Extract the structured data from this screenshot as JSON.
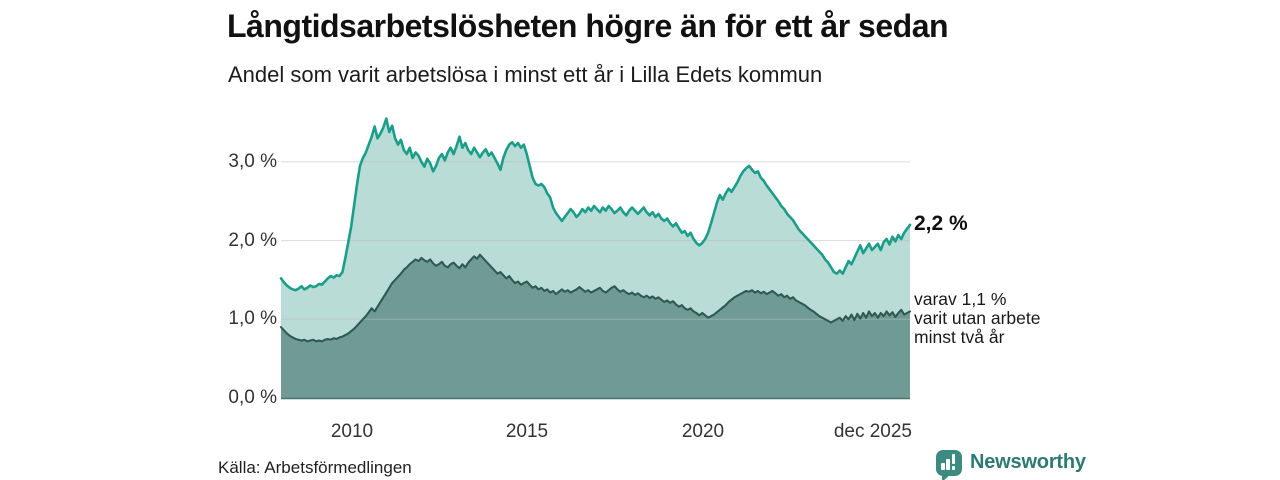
{
  "header": {
    "title": "Långtidsarbetslösheten högre än för ett år sedan",
    "subtitle": "Andel som varit arbetslösa i minst ett år i Lilla Edets kommun"
  },
  "chart": {
    "y_axis": {
      "labels": [
        "3,0 %",
        "2,0 %",
        "1,0 %",
        "0,0 %"
      ]
    },
    "x_axis": {
      "labels": [
        "2010",
        "2015",
        "2020",
        "dec 2025"
      ]
    }
  },
  "annotations": {
    "total_label": "2,2 %",
    "inner_lines": [
      "varav 1,1 %",
      "varit utan arbete",
      "minst två år"
    ]
  },
  "footer": {
    "source": "Källa: Arbetsförmedlingen",
    "brand": "Newsworthy"
  },
  "colors": {
    "total_line": "#1a9e8a",
    "total_fill": "#b9dcd6",
    "inner_line": "#2d5a52",
    "inner_fill": "#6f9b94",
    "grid": "#bdbdbd",
    "baseline": "#48756d",
    "brand_teal": "#2d7a72",
    "logo_bg": "#3b8b80"
  },
  "chart_data": {
    "type": "area",
    "title": "Långtidsarbetslösheten högre än för ett år sedan",
    "subtitle": "Andel som varit arbetslösa i minst ett år i Lilla Edets kommun",
    "unit": "percent",
    "frequency": "monthly",
    "start": "2008-01",
    "end": "2025-12",
    "ylim": [
      0,
      3.7
    ],
    "grid": "horizontal",
    "y_tick_values": [
      3,
      2,
      1,
      0
    ],
    "y_tick_labels": [
      "3,0 %",
      "2,0 %",
      "1,0 %",
      "0,0 %"
    ],
    "x_tick_labels": [
      "2010",
      "2015",
      "2020",
      "dec 2025"
    ],
    "legend_position": "right-annotations",
    "source": "Källa: Arbetsförmedlingen",
    "series": [
      {
        "name": "Andel arbetslösa minst ett år",
        "latest_value": 2.2,
        "latest_label": "2,2 %",
        "color": "#1a9e8a",
        "fill": "#b9dcd6",
        "values": [
          1.52,
          1.47,
          1.43,
          1.4,
          1.38,
          1.37,
          1.39,
          1.42,
          1.38,
          1.4,
          1.43,
          1.41,
          1.42,
          1.45,
          1.44,
          1.48,
          1.52,
          1.55,
          1.53,
          1.56,
          1.55,
          1.6,
          1.78,
          1.98,
          2.18,
          2.45,
          2.72,
          2.95,
          3.05,
          3.12,
          3.22,
          3.32,
          3.45,
          3.3,
          3.36,
          3.44,
          3.55,
          3.38,
          3.46,
          3.3,
          3.22,
          3.28,
          3.15,
          3.1,
          3.18,
          3.05,
          3.12,
          3.08,
          3.0,
          2.94,
          3.04,
          2.98,
          2.88,
          2.95,
          3.05,
          3.1,
          3.02,
          3.12,
          3.18,
          3.1,
          3.2,
          3.32,
          3.18,
          3.24,
          3.15,
          3.1,
          3.18,
          3.12,
          3.06,
          3.12,
          3.16,
          3.08,
          3.12,
          3.05,
          2.98,
          2.9,
          3.05,
          3.15,
          3.22,
          3.25,
          3.2,
          3.24,
          3.18,
          3.22,
          3.1,
          2.95,
          2.8,
          2.72,
          2.7,
          2.72,
          2.68,
          2.6,
          2.55,
          2.42,
          2.35,
          2.3,
          2.25,
          2.3,
          2.35,
          2.4,
          2.36,
          2.3,
          2.34,
          2.4,
          2.36,
          2.42,
          2.38,
          2.44,
          2.4,
          2.36,
          2.42,
          2.38,
          2.44,
          2.4,
          2.35,
          2.38,
          2.42,
          2.36,
          2.32,
          2.38,
          2.42,
          2.38,
          2.34,
          2.38,
          2.42,
          2.36,
          2.32,
          2.36,
          2.3,
          2.34,
          2.28,
          2.25,
          2.28,
          2.22,
          2.18,
          2.22,
          2.16,
          2.1,
          2.12,
          2.06,
          2.1,
          2.02,
          1.97,
          1.94,
          1.97,
          2.02,
          2.1,
          2.22,
          2.35,
          2.48,
          2.58,
          2.52,
          2.6,
          2.66,
          2.62,
          2.68,
          2.74,
          2.82,
          2.88,
          2.92,
          2.95,
          2.9,
          2.86,
          2.88,
          2.8,
          2.76,
          2.7,
          2.65,
          2.6,
          2.55,
          2.5,
          2.44,
          2.4,
          2.34,
          2.3,
          2.26,
          2.2,
          2.14,
          2.1,
          2.06,
          2.02,
          1.98,
          1.94,
          1.9,
          1.86,
          1.82,
          1.76,
          1.72,
          1.66,
          1.6,
          1.58,
          1.62,
          1.58,
          1.66,
          1.74,
          1.7,
          1.78,
          1.86,
          1.94,
          1.84,
          1.9,
          1.96,
          1.88,
          1.92,
          1.96,
          1.88,
          1.98,
          2.02,
          1.95,
          2.05,
          1.99,
          2.07,
          2.02,
          2.1,
          2.15,
          2.2
        ]
      },
      {
        "name": "varav utan arbete minst två år",
        "latest_value": 1.1,
        "latest_label": "varav 1,1 % varit utan arbete minst två år",
        "color": "#2d5a52",
        "fill": "#6f9b94",
        "values": [
          0.9,
          0.86,
          0.82,
          0.79,
          0.77,
          0.75,
          0.74,
          0.73,
          0.74,
          0.72,
          0.73,
          0.74,
          0.72,
          0.73,
          0.72,
          0.74,
          0.75,
          0.74,
          0.76,
          0.75,
          0.77,
          0.78,
          0.8,
          0.82,
          0.85,
          0.88,
          0.92,
          0.96,
          1.0,
          1.04,
          1.09,
          1.14,
          1.1,
          1.16,
          1.22,
          1.28,
          1.34,
          1.4,
          1.46,
          1.5,
          1.54,
          1.58,
          1.63,
          1.66,
          1.7,
          1.73,
          1.76,
          1.74,
          1.78,
          1.75,
          1.73,
          1.76,
          1.71,
          1.68,
          1.7,
          1.73,
          1.68,
          1.66,
          1.7,
          1.72,
          1.68,
          1.65,
          1.7,
          1.66,
          1.72,
          1.76,
          1.8,
          1.77,
          1.82,
          1.78,
          1.74,
          1.7,
          1.66,
          1.62,
          1.58,
          1.6,
          1.56,
          1.52,
          1.55,
          1.5,
          1.46,
          1.48,
          1.44,
          1.46,
          1.48,
          1.44,
          1.4,
          1.42,
          1.38,
          1.4,
          1.36,
          1.38,
          1.34,
          1.36,
          1.32,
          1.35,
          1.38,
          1.35,
          1.37,
          1.34,
          1.36,
          1.38,
          1.41,
          1.38,
          1.35,
          1.37,
          1.34,
          1.36,
          1.38,
          1.4,
          1.36,
          1.34,
          1.37,
          1.4,
          1.42,
          1.38,
          1.35,
          1.37,
          1.34,
          1.32,
          1.34,
          1.31,
          1.33,
          1.3,
          1.28,
          1.3,
          1.27,
          1.29,
          1.26,
          1.28,
          1.25,
          1.22,
          1.24,
          1.21,
          1.23,
          1.19,
          1.16,
          1.18,
          1.14,
          1.12,
          1.14,
          1.1,
          1.08,
          1.05,
          1.08,
          1.05,
          1.02,
          1.04,
          1.06,
          1.09,
          1.12,
          1.15,
          1.18,
          1.22,
          1.25,
          1.28,
          1.3,
          1.32,
          1.34,
          1.36,
          1.35,
          1.37,
          1.34,
          1.36,
          1.33,
          1.35,
          1.32,
          1.34,
          1.36,
          1.33,
          1.3,
          1.32,
          1.28,
          1.3,
          1.26,
          1.28,
          1.24,
          1.22,
          1.2,
          1.18,
          1.15,
          1.12,
          1.1,
          1.07,
          1.04,
          1.02,
          1.0,
          0.98,
          0.96,
          0.98,
          1.0,
          1.02,
          0.98,
          1.04,
          1.0,
          1.06,
          0.99,
          1.07,
          1.01,
          1.08,
          1.02,
          1.1,
          1.04,
          1.08,
          1.02,
          1.08,
          1.04,
          1.1,
          1.05,
          1.09,
          1.03,
          1.08,
          1.12,
          1.06,
          1.08,
          1.1
        ]
      }
    ]
  }
}
